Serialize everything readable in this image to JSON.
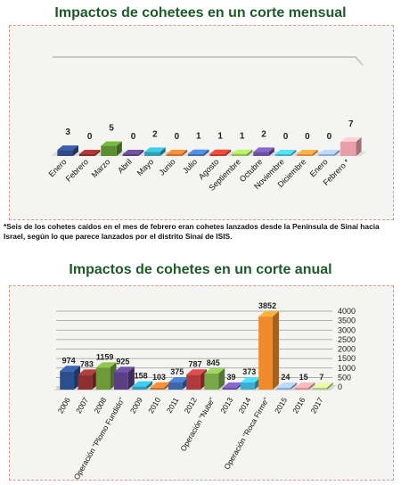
{
  "charts": {
    "monthly_title": "Impactos de cohetees en un corte mensual",
    "annual_title": "Impactos de cohetes en un corte anual",
    "footnote": "*Seis de los cohetes caídos en el mes de febrero eran cohetes lanzados desde la Península de Sinaí hacia Israel, según lo que parece lanzados por el distrito Sinaí de ISIS."
  },
  "chart_data": [
    {
      "type": "bar",
      "title": "Impactos de cohetees en un corte mensual",
      "categories": [
        "Enero",
        "Febrero",
        "Marzo",
        "Abril",
        "Mayo",
        "Junio",
        "Julio",
        "Agosto",
        "Septiembre",
        "Octubre",
        "Noviembre",
        "Diciembre",
        "Enero",
        "Febrero *"
      ],
      "values": [
        3,
        0,
        5,
        0,
        2,
        0,
        1,
        1,
        1,
        2,
        0,
        0,
        0,
        7
      ],
      "colors": [
        "#2e4a87",
        "#8b2a2a",
        "#5a8f2f",
        "#5a3f80",
        "#2f9fb7",
        "#d0702a",
        "#3d6fb5",
        "#c0392b",
        "#8fbf50",
        "#6a4fa0",
        "#40b0c8",
        "#e08a3a",
        "#8fa8d8",
        "#e8a0a8"
      ],
      "grid": false,
      "legend": "none"
    },
    {
      "type": "bar",
      "title": "Impactos de cohetes en un corte anual",
      "categories": [
        "2006",
        "2007",
        "2008",
        "Operación \"Plomo Fundido\"",
        "2009",
        "2010",
        "2011",
        "2012",
        "Operación \"Nube\"",
        "2013",
        "2014",
        "Operación \"Roca Firme\"",
        "2015",
        "2016",
        "2017"
      ],
      "values": [
        974,
        783,
        1159,
        925,
        158,
        103,
        375,
        787,
        845,
        39,
        373,
        3852,
        24,
        15,
        7
      ],
      "colors": [
        "#2b4f8c",
        "#8c2f2f",
        "#6e9a3a",
        "#5a3f85",
        "#2f9fb7",
        "#d0702a",
        "#3b66a8",
        "#b03a3a",
        "#78a84a",
        "#6a4fa0",
        "#3aaed0",
        "#f08a2a",
        "#8fa8d8",
        "#d89090",
        "#b0c880"
      ],
      "yticks": [
        0,
        500,
        1000,
        1500,
        2000,
        2500,
        3000,
        3500,
        4000
      ],
      "ylim": [
        0,
        4000
      ],
      "grid": true,
      "legend": "none"
    }
  ]
}
